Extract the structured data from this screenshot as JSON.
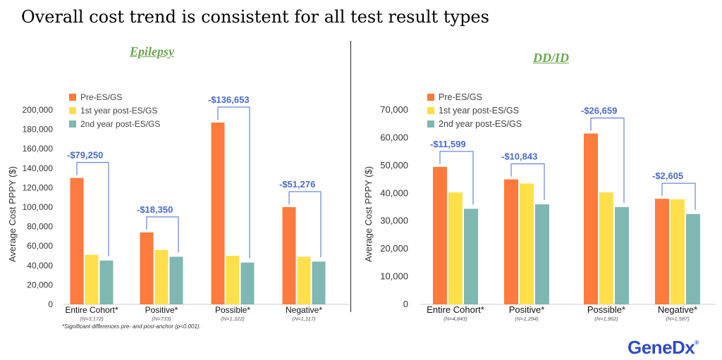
{
  "slide": {
    "title": "Overall cost trend is consistent for all test result types",
    "footnote": "*Significant differences pre- and post-anchor (p<0.001).",
    "logo": "GeneDx"
  },
  "colors": {
    "pre": "#ff7a3d",
    "year1": "#ffe04a",
    "year2": "#7fb8b2",
    "annotation": "#4a6cc8",
    "panel_title": "#6aa84f"
  },
  "chart_data": [
    {
      "type": "bar",
      "title": "Epilepsy",
      "ylabel": "Average Cost PPPY ($)",
      "ylim": [
        0,
        200000
      ],
      "yticks": [
        "0",
        "20,000",
        "40,000",
        "60,000",
        "80,000",
        "100,000",
        "120,000",
        "140,000",
        "160,000",
        "180,000",
        "200,000"
      ],
      "categories": [
        "Entire Cohort*",
        "Positive*",
        "Possible*",
        "Negative*"
      ],
      "ns": [
        "(N=3,172)",
        "(N=733)",
        "(N=1,322)",
        "(N=1,117)"
      ],
      "series": [
        {
          "name": "Pre-ES/GS",
          "values": [
            130000,
            74000,
            187000,
            100000
          ]
        },
        {
          "name": "1st year post-ES/GS",
          "values": [
            51000,
            56000,
            50000,
            49000
          ]
        },
        {
          "name": "2nd year post-ES/GS",
          "values": [
            45000,
            49000,
            43000,
            44000
          ]
        }
      ],
      "annotations": [
        "-$79,250",
        "-$18,350",
        "-$136,653",
        "-$51,276"
      ],
      "grid": false,
      "legend": "top-left"
    },
    {
      "type": "bar",
      "title": "DD/ID",
      "ylabel": "Average Cost PPPY ($)",
      "ylim": [
        0,
        70000
      ],
      "yticks": [
        "0",
        "10,000",
        "20,000",
        "30,000",
        "40,000",
        "50,000",
        "60,000",
        "70,000"
      ],
      "categories": [
        "Entire Cohort*",
        "Positive*",
        "Possible*",
        "Negative*"
      ],
      "ns": [
        "(N=4,843)",
        "(N=1,294)",
        "(N=1,962)",
        "(N=1,587)"
      ],
      "series": [
        {
          "name": "Pre-ES/GS",
          "values": [
            49500,
            45000,
            61500,
            38000
          ]
        },
        {
          "name": "1st year post-ES/GS",
          "values": [
            40300,
            43500,
            40300,
            37800
          ]
        },
        {
          "name": "2nd year post-ES/GS",
          "values": [
            34400,
            36000,
            35000,
            32500
          ]
        }
      ],
      "annotations": [
        "-$11,599",
        "-$10,843",
        "-$26,659",
        "-$2,605"
      ],
      "grid": false,
      "legend": "top-left"
    }
  ]
}
